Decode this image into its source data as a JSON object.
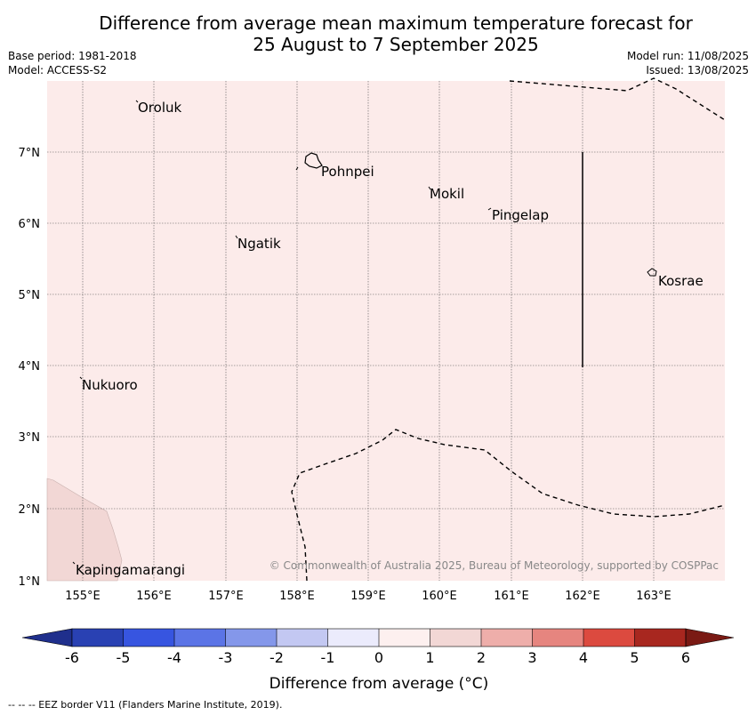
{
  "title_line1": "Difference from average mean maximum temperature forecast for",
  "title_line2": "25 August to 7 September 2025",
  "meta": {
    "base_period": "Base period: 1981-2018",
    "model": "Model: ACCESS-S2",
    "model_run": "Model run: 11/08/2025",
    "issued": "Issued: 13/08/2025"
  },
  "map": {
    "lon_ticks": [
      "155°E",
      "156°E",
      "157°E",
      "158°E",
      "159°E",
      "160°E",
      "161°E",
      "162°E",
      "163°E"
    ],
    "lat_ticks": [
      "7°N",
      "6°N",
      "5°N",
      "4°N",
      "3°N",
      "2°N",
      "1°N"
    ],
    "places": [
      "Oroluk",
      "Pohnpei",
      "Mokil",
      "Pingelap",
      "Ngatik",
      "Kosrae",
      "Nukuoro",
      "Kapingamarangi"
    ],
    "copyright": "© Commonwealth of Australia 2025, Bureau of Meteorology, supported by COSPPac",
    "fill_color": "#fcebea",
    "secondary_fill_color": "#f2d7d5"
  },
  "colorbar": {
    "ticks": [
      "-6",
      "-5",
      "-4",
      "-3",
      "-2",
      "-1",
      "0",
      "1",
      "2",
      "3",
      "4",
      "5",
      "6"
    ],
    "colors": [
      "#1f2f8c",
      "#2941b3",
      "#3755e0",
      "#5b74e6",
      "#8497ea",
      "#c3c8f2",
      "#ebebfc",
      "#fdf0ef",
      "#f2d7d5",
      "#eeaeaa",
      "#e6857f",
      "#dc4a3f",
      "#a8271f",
      "#7a1a14"
    ],
    "label": "Difference from average (°C)"
  },
  "footer": "--  --  -- EEZ border V11 (Flanders Marine Institute, 2019)."
}
